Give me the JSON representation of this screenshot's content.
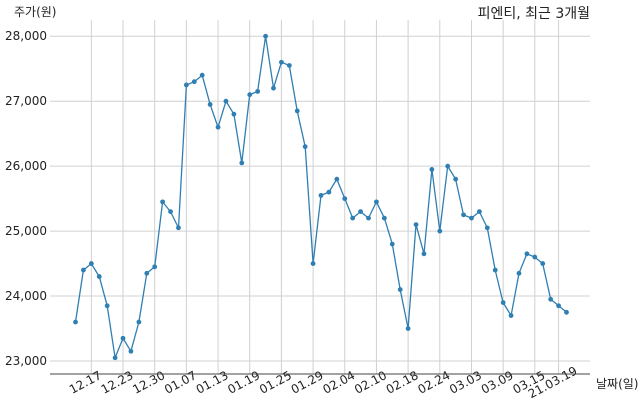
{
  "chart_data": {
    "type": "line",
    "title": "피엔티, 최근 3개월",
    "ylabel": "주가(원)",
    "xlabel": "날짜(일)",
    "ylim": [
      22800,
      28250
    ],
    "y_ticks": [
      23000,
      24000,
      25000,
      26000,
      27000,
      28000
    ],
    "y_tick_labels": [
      "23,000",
      "24,000",
      "25,000",
      "26,000",
      "27,000",
      "28,000"
    ],
    "x_tick_labels": [
      "12.17",
      "12.23",
      "12.30",
      "01.07",
      "01.13",
      "01.19",
      "01.25",
      "01.29",
      "02.04",
      "02.10",
      "02.18",
      "02.24",
      "03.03",
      "03.09",
      "03.15",
      "21.03.19"
    ],
    "x_tick_indices": [
      2,
      6,
      10,
      14,
      18,
      22,
      26,
      30,
      34,
      38,
      42,
      46,
      50,
      54,
      58,
      61
    ],
    "grid": true,
    "series": [
      {
        "color": "#2f7fb3",
        "values": [
          23600,
          24400,
          24500,
          24300,
          23850,
          23050,
          23350,
          23150,
          23600,
          24350,
          24450,
          25450,
          25300,
          25050,
          27250,
          27300,
          27400,
          26950,
          26600,
          27000,
          26800,
          26050,
          27100,
          27150,
          28000,
          27200,
          27600,
          27550,
          26850,
          26300,
          24500,
          25550,
          25600,
          25800,
          25500,
          25200,
          25300,
          25200,
          25450,
          25200,
          24800,
          24100,
          23500,
          25100,
          24650,
          25950,
          25000,
          26000,
          25800,
          25250,
          25200,
          25300,
          25050,
          24400,
          23900,
          23700,
          24350,
          24650,
          24600,
          24500,
          23950,
          23850,
          23750
        ]
      }
    ]
  }
}
